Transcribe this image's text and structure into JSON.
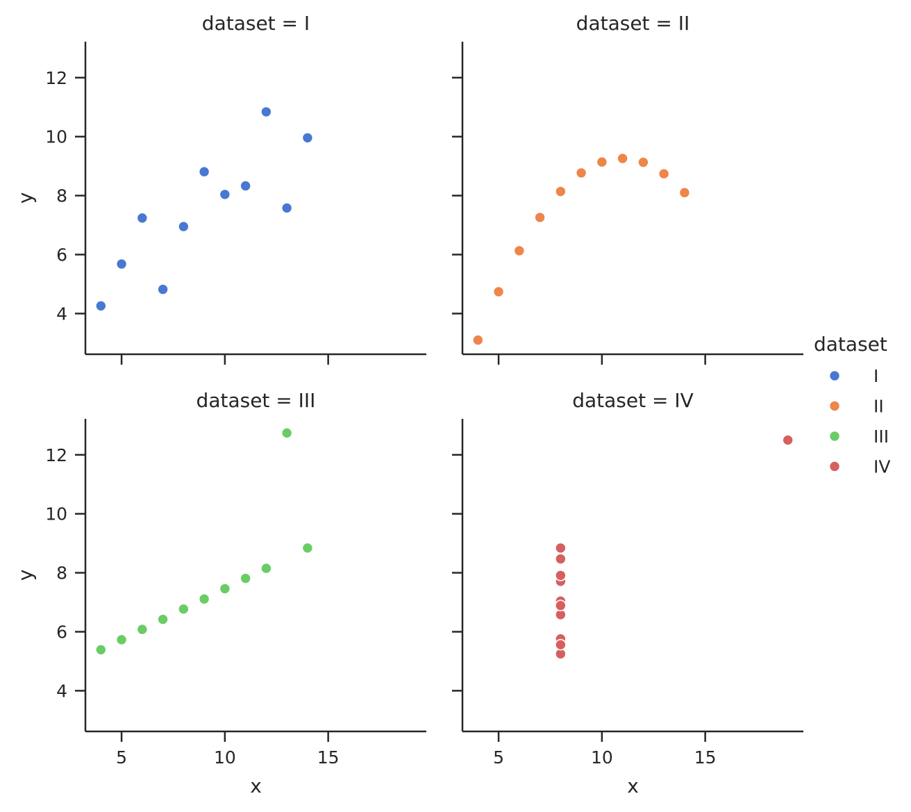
{
  "chart_data": {
    "type": "scatter",
    "legend": {
      "title": "dataset",
      "placement": "right"
    },
    "series": [
      {
        "name": "I",
        "color": "#4878d0",
        "x": [
          10,
          8,
          13,
          9,
          11,
          14,
          6,
          4,
          12,
          7,
          5
        ],
        "y": [
          8.04,
          6.95,
          7.58,
          8.81,
          8.33,
          9.96,
          7.24,
          4.26,
          10.84,
          4.82,
          5.68
        ]
      },
      {
        "name": "II",
        "color": "#ee854a",
        "x": [
          10,
          8,
          13,
          9,
          11,
          14,
          6,
          4,
          12,
          7,
          5
        ],
        "y": [
          9.14,
          8.14,
          8.74,
          8.77,
          9.26,
          8.1,
          6.13,
          3.1,
          9.13,
          7.26,
          4.74
        ]
      },
      {
        "name": "III",
        "color": "#6acc64",
        "x": [
          10,
          8,
          13,
          9,
          11,
          14,
          6,
          4,
          12,
          7,
          5
        ],
        "y": [
          7.46,
          6.77,
          12.74,
          7.11,
          7.81,
          8.84,
          6.08,
          5.39,
          8.15,
          6.42,
          5.73
        ]
      },
      {
        "name": "IV",
        "color": "#d65f5f",
        "x": [
          8,
          8,
          8,
          8,
          8,
          8,
          8,
          19,
          8,
          8,
          8
        ],
        "y": [
          6.58,
          5.76,
          7.71,
          8.84,
          8.47,
          7.04,
          5.25,
          12.5,
          5.56,
          7.91,
          6.89
        ]
      }
    ],
    "panels": [
      {
        "title": "dataset = I",
        "series": 0
      },
      {
        "title": "dataset = II",
        "series": 1
      },
      {
        "title": "dataset = III",
        "series": 2
      },
      {
        "title": "dataset = IV",
        "series": 3
      }
    ],
    "xlabel": "x",
    "ylabel": "y",
    "xlim": [
      3.25,
      19.75
    ],
    "ylim": [
      2.62,
      13.22
    ],
    "xticks": [
      5,
      10,
      15
    ],
    "yticks": [
      4,
      6,
      8,
      10,
      12
    ],
    "grid": false
  }
}
